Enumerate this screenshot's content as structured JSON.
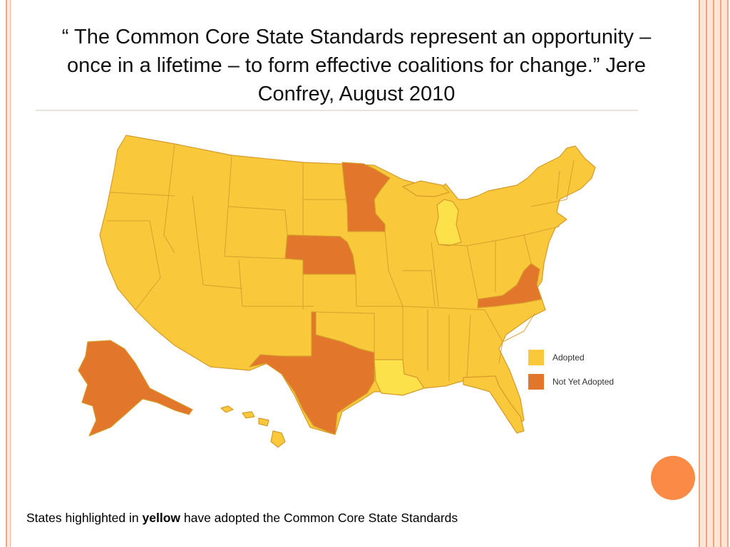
{
  "slide": {
    "quote_open": "“",
    "quote_text": "The Common Core State Standards represent an opportunity – once in a lifetime – to form effective coalitions for change.",
    "quote_close": "”",
    "attribution": "Jere Confrey, August 2010"
  },
  "legend": {
    "items": [
      {
        "label": "Adopted",
        "color": "#f9c93b"
      },
      {
        "label": "Not Yet Adopted",
        "color": "#e2762a"
      }
    ]
  },
  "map": {
    "adopted_color": "#f9c93b",
    "not_adopted_color": "#e2762a",
    "border_color": "#d69b2b",
    "not_adopted_states": [
      "Alaska",
      "Texas",
      "Nebraska",
      "Minnesota",
      "Virginia"
    ]
  },
  "footer": {
    "prefix": "States highlighted in",
    "highlight": "yellow",
    "suffix": "have adopted the Common Core State Standards"
  },
  "theme": {
    "accent": "#fb8a46",
    "frame": "#f4a47e"
  }
}
